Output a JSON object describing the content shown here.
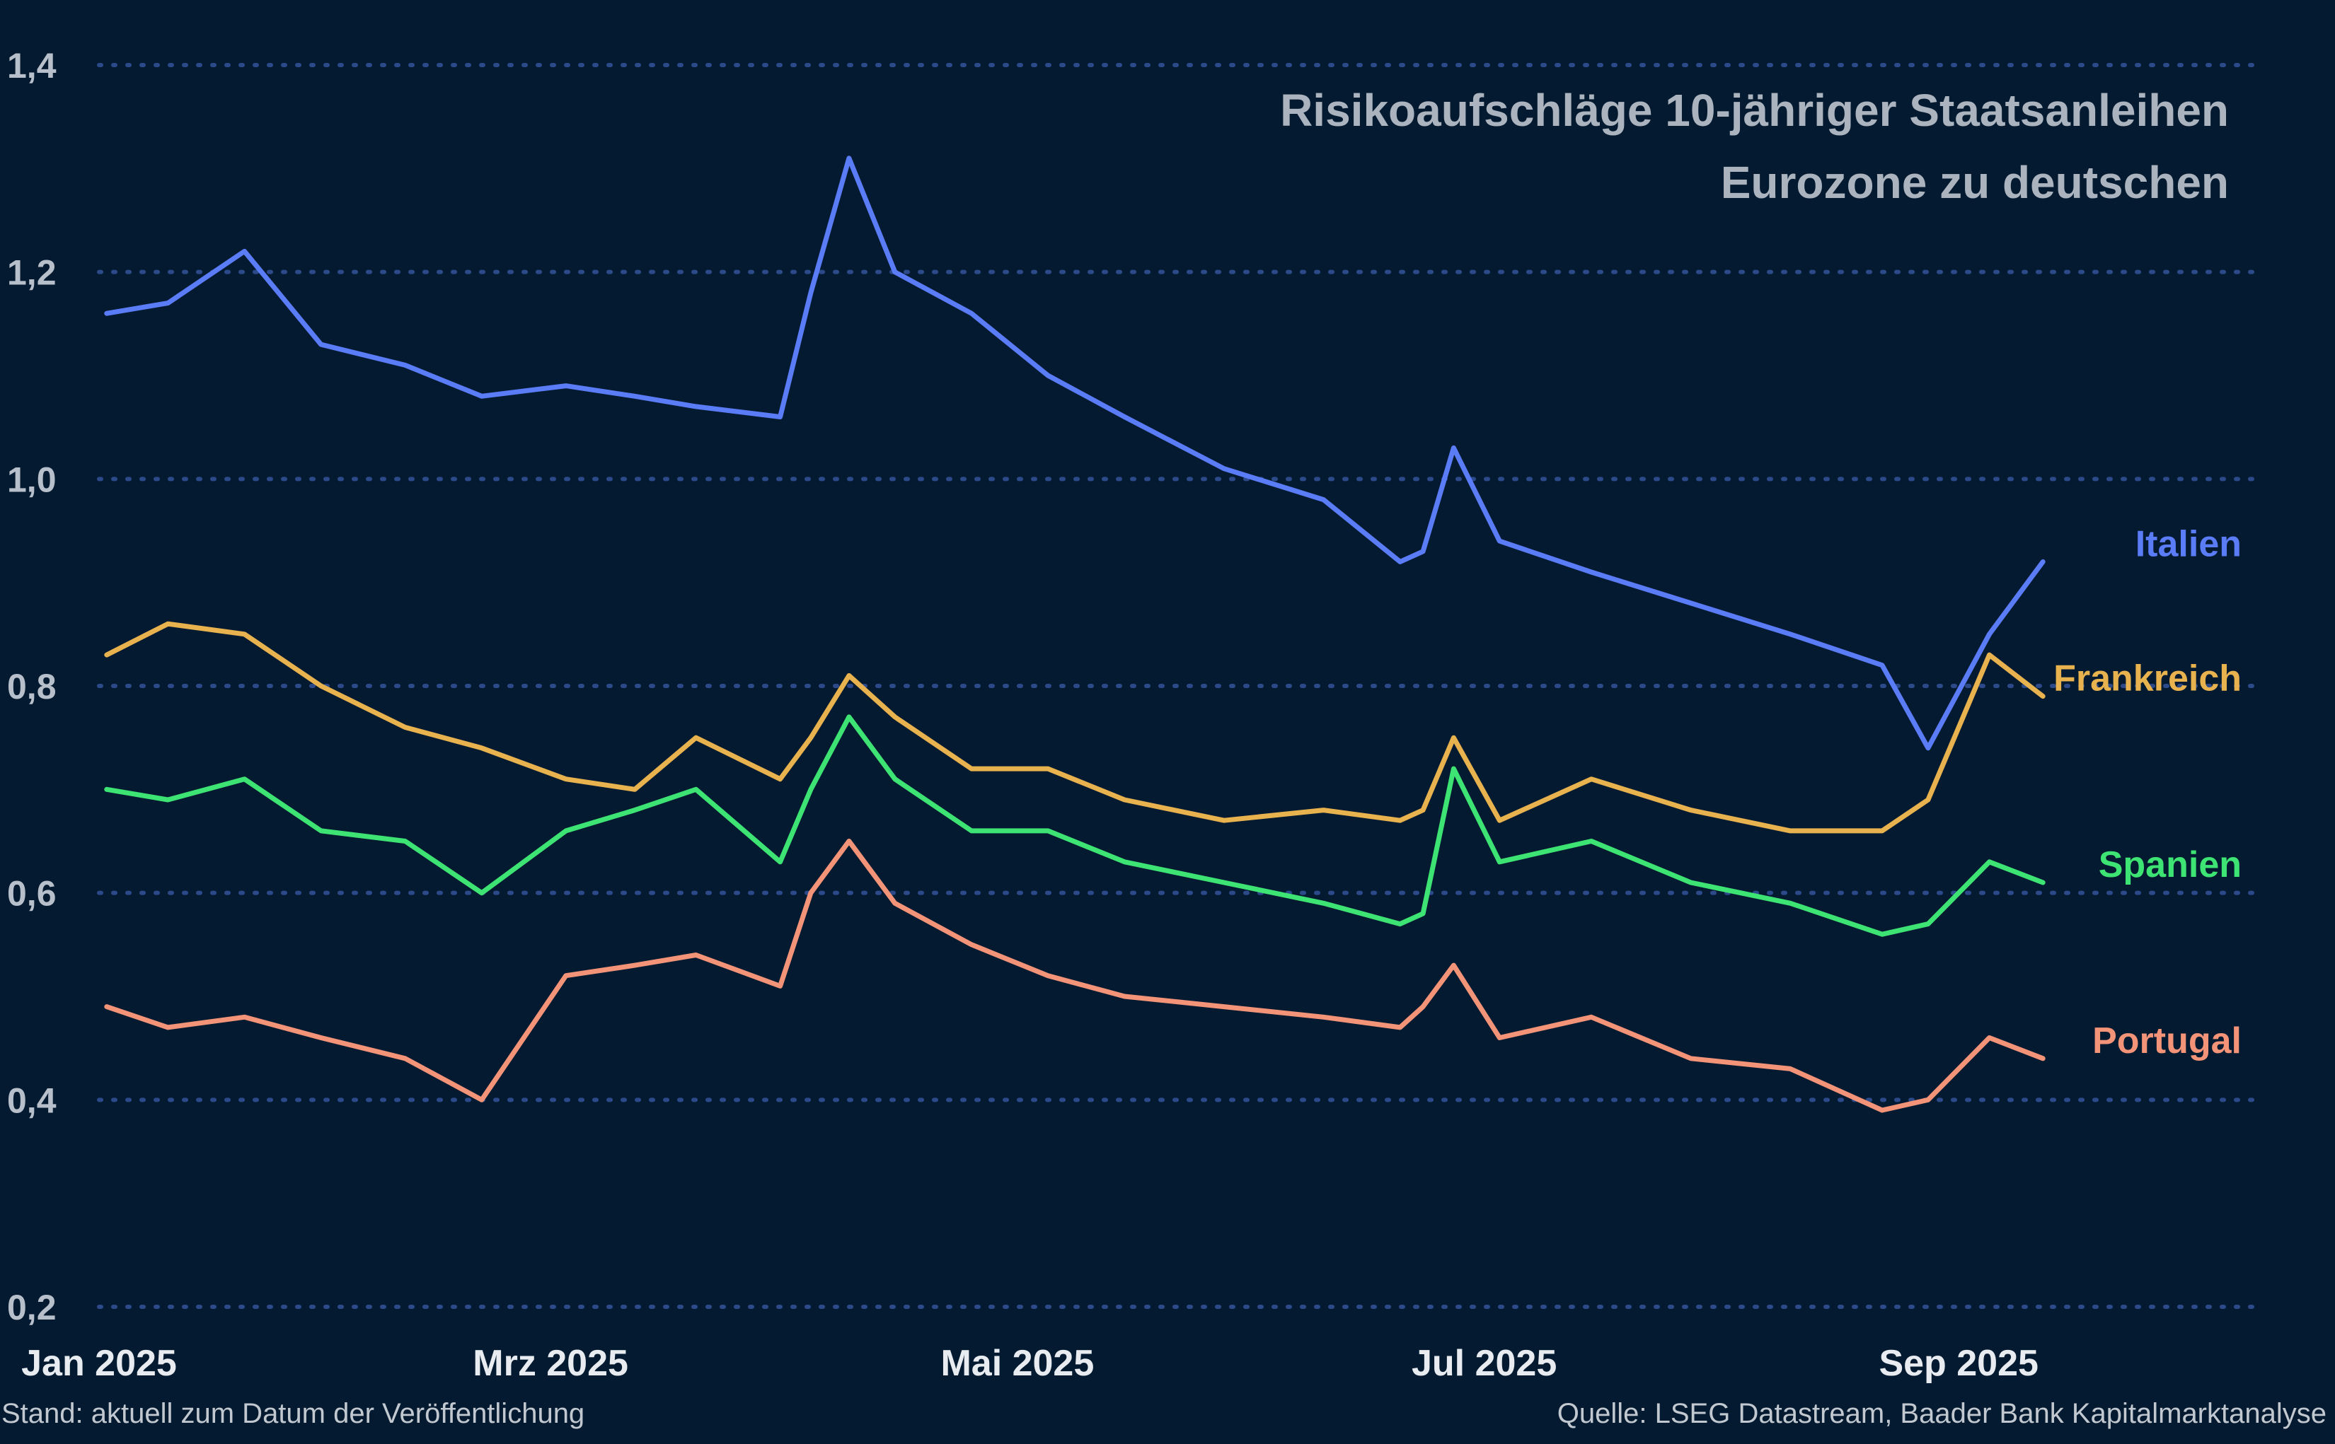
{
  "chart_data": {
    "type": "line",
    "title_lines": [
      "Risikoaufschläge 10-jähriger Staatsanleihen",
      "Eurozone zu deutschen"
    ],
    "ylim": [
      0.2,
      1.4
    ],
    "yticks": [
      {
        "value": 1.4,
        "label": "1,4"
      },
      {
        "value": 1.2,
        "label": "1,2"
      },
      {
        "value": 1.0,
        "label": "1,0"
      },
      {
        "value": 0.8,
        "label": "0,8"
      },
      {
        "value": 0.6,
        "label": "0,6"
      },
      {
        "value": 0.4,
        "label": "0,4"
      },
      {
        "value": 0.2,
        "label": "0,2"
      }
    ],
    "grid": "horizontal-dotted",
    "xlim": [
      "2025-01-01",
      "2025-10-10"
    ],
    "xticks": [
      {
        "date": "2025-01-01",
        "label": "Jan 2025"
      },
      {
        "date": "2025-03-01",
        "label": "Mrz 2025"
      },
      {
        "date": "2025-05-01",
        "label": "Mai 2025"
      },
      {
        "date": "2025-07-01",
        "label": "Jul 2025"
      },
      {
        "date": "2025-09-01",
        "label": "Sep 2025"
      }
    ],
    "x": [
      "2025-01-02",
      "2025-01-10",
      "2025-01-20",
      "2025-01-30",
      "2025-02-10",
      "2025-02-20",
      "2025-03-03",
      "2025-03-12",
      "2025-03-20",
      "2025-03-31",
      "2025-04-04",
      "2025-04-09",
      "2025-04-15",
      "2025-04-25",
      "2025-05-05",
      "2025-05-15",
      "2025-05-28",
      "2025-06-10",
      "2025-06-20",
      "2025-06-23",
      "2025-06-27",
      "2025-07-03",
      "2025-07-15",
      "2025-07-28",
      "2025-08-10",
      "2025-08-22",
      "2025-08-28",
      "2025-09-05",
      "2025-09-12"
    ],
    "series": [
      {
        "name": "Italien",
        "color": "#5b7cf7",
        "values": [
          1.16,
          1.17,
          1.22,
          1.13,
          1.11,
          1.08,
          1.09,
          1.08,
          1.07,
          1.06,
          1.18,
          1.31,
          1.2,
          1.16,
          1.1,
          1.06,
          1.01,
          0.98,
          0.92,
          0.93,
          1.03,
          0.94,
          0.91,
          0.88,
          0.85,
          0.82,
          0.74,
          0.85,
          0.92
        ]
      },
      {
        "name": "Frankreich",
        "color": "#e8b24e",
        "values": [
          0.83,
          0.86,
          0.85,
          0.8,
          0.76,
          0.74,
          0.71,
          0.7,
          0.75,
          0.71,
          0.75,
          0.81,
          0.77,
          0.72,
          0.72,
          0.69,
          0.67,
          0.68,
          0.67,
          0.68,
          0.75,
          0.67,
          0.71,
          0.68,
          0.66,
          0.66,
          0.69,
          0.83,
          0.79
        ]
      },
      {
        "name": "Spanien",
        "color": "#3de373",
        "values": [
          0.7,
          0.69,
          0.71,
          0.66,
          0.65,
          0.6,
          0.66,
          0.68,
          0.7,
          0.63,
          0.7,
          0.77,
          0.71,
          0.66,
          0.66,
          0.63,
          0.61,
          0.59,
          0.57,
          0.58,
          0.72,
          0.63,
          0.65,
          0.61,
          0.59,
          0.56,
          0.57,
          0.63,
          0.61
        ]
      },
      {
        "name": "Portugal",
        "color": "#f39378",
        "values": [
          0.49,
          0.47,
          0.48,
          0.46,
          0.44,
          0.4,
          0.52,
          0.53,
          0.54,
          0.51,
          0.6,
          0.65,
          0.59,
          0.55,
          0.52,
          0.5,
          0.49,
          0.48,
          0.47,
          0.49,
          0.53,
          0.46,
          0.48,
          0.44,
          0.43,
          0.39,
          0.4,
          0.46,
          0.44
        ]
      }
    ],
    "legend": "right, inline series labels"
  },
  "footer": {
    "left": "Stand: aktuell zum Datum der Veröffentlichung",
    "right": "Quelle: LSEG Datastream, Baader Bank Kapitalmarktanalyse"
  }
}
